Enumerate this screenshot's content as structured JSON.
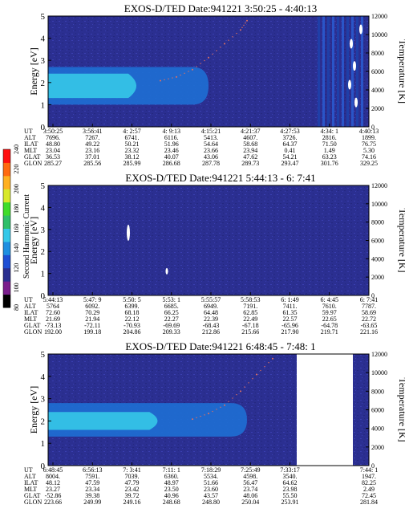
{
  "colors": {
    "background": "#ffffff",
    "axis": "#000000",
    "spectrogram_low": "#2a2f8f",
    "spectrogram_mid": "#1e6fd4",
    "spectrogram_high": "#35c8e8",
    "temperature_dots": "#e07060"
  },
  "colorbar": {
    "label": "Second Harmonic Current",
    "ticks": [
      "80",
      "100",
      "120",
      "140",
      "160",
      "180",
      "200",
      "220",
      "240"
    ],
    "colors": [
      "#000000",
      "#7a1e8c",
      "#2a2f8f",
      "#1e4fd4",
      "#1e8fe0",
      "#35c8e8",
      "#2fbf6a",
      "#3fdc2a",
      "#d8e82a",
      "#ffb020",
      "#ff6a10",
      "#ff1010"
    ]
  },
  "chart_data": [
    {
      "type": "heatmap",
      "title": "EXOS-D/TED   Date:941221  3:50:25 - 4:40:13",
      "ylabel": "Energy [eV]",
      "y2label": "Temperature [K]",
      "ylim": [
        0,
        5
      ],
      "y2lim": [
        0,
        12000
      ],
      "yticks": [
        "0",
        "1",
        "2",
        "3",
        "4",
        "5"
      ],
      "y2ticks": [
        "0",
        "2000",
        "4000",
        "6000",
        "8000",
        "10000",
        "12000"
      ],
      "row_labels": [
        "UT",
        "ALT",
        "ILAT",
        "MLT",
        "GLAT",
        "GLON"
      ],
      "columns": [
        [
          "3:50:25",
          "7696.",
          "48.80",
          "23.04",
          "36.53",
          "285.27"
        ],
        [
          "3:56:41",
          "7267.",
          "49.22",
          "23.16",
          "37.01",
          "285.56"
        ],
        [
          "4: 2:57",
          "6741.",
          "50.21",
          "23.32",
          "38.12",
          "285.99"
        ],
        [
          "4: 9:13",
          "6116.",
          "51.96",
          "23.46",
          "40.07",
          "286.68"
        ],
        [
          "4:15:21",
          "5413.",
          "54.64",
          "23.66",
          "43.06",
          "287.78"
        ],
        [
          "4:21:37",
          "4607.",
          "58.68",
          "23.94",
          "47.62",
          "289.73"
        ],
        [
          "4:27:53",
          "3726.",
          "64.37",
          "0.41",
          "54.21",
          "293.47"
        ],
        [
          "4:34: 1",
          "2816.",
          "71.50",
          "1.49",
          "63.23",
          "301.76"
        ],
        [
          "4:40:13",
          "1899.",
          "76.75",
          "5.30",
          "74.16",
          "329.25"
        ]
      ],
      "band": {
        "energy_low": 1.0,
        "energy_high": 2.7,
        "core_low": 1.3,
        "core_high": 2.4,
        "end_fraction": 0.5
      },
      "temperature_trace": [
        [
          0.35,
          5000
        ],
        [
          0.4,
          5400
        ],
        [
          0.45,
          6200
        ],
        [
          0.5,
          7500
        ],
        [
          0.55,
          9000
        ],
        [
          0.6,
          10500
        ],
        [
          0.62,
          11500
        ]
      ]
    },
    {
      "type": "heatmap",
      "title": "EXOS-D/TED   Date:941221  5:44:13 - 6: 7:41",
      "ylabel": "Energy [eV]",
      "y2label": "Temperature [K]",
      "ylim": [
        0,
        5
      ],
      "y2lim": [
        0,
        12000
      ],
      "yticks": [
        "0",
        "1",
        "2",
        "3",
        "4",
        "5"
      ],
      "y2ticks": [
        "0",
        "2000",
        "4000",
        "6000",
        "8000",
        "10000",
        "12000"
      ],
      "row_labels": [
        "UT",
        "ALT",
        "ILAT",
        "MLT",
        "GLAT",
        "GLON"
      ],
      "columns": [
        [
          "5:44:13",
          "5764",
          "72.60",
          "21.69",
          "-73.13",
          "192.00"
        ],
        [
          "5:47: 9",
          "6092.",
          "70.29",
          "21.94",
          "-72.11",
          "199.18"
        ],
        [
          "5:50: 5",
          "6399.",
          "68.18",
          "22.12",
          "-70.93",
          "204.86"
        ],
        [
          "5:53: 1",
          "6685.",
          "66.25",
          "22.27",
          "-69.69",
          "209.33"
        ],
        [
          "5:55:57",
          "6949.",
          "64.48",
          "22.39",
          "-68.43",
          "212.86"
        ],
        [
          "5:58:53",
          "7191.",
          "62.85",
          "22.49",
          "-67.18",
          "215.66"
        ],
        [
          "6: 1:49",
          "7411.",
          "61.35",
          "22.57",
          "-65.96",
          "217.90"
        ],
        [
          "6: 4:45",
          "7610.",
          "59.97",
          "22.65",
          "-64.78",
          "219.71"
        ],
        [
          "6: 7:41",
          "7787.",
          "58.69",
          "22.72",
          "-63.65",
          "221.16"
        ]
      ]
    },
    {
      "type": "heatmap",
      "title": "EXOS-D/TED   Date:941221  6:48:45 - 7:48: 1",
      "ylabel": "Energy [eV]",
      "y2label": "Temperature [K]",
      "ylim": [
        0,
        5
      ],
      "y2lim": [
        0,
        12000
      ],
      "yticks": [
        "0",
        "1",
        "2",
        "3",
        "4",
        "5"
      ],
      "y2ticks": [
        "0",
        "2000",
        "4000",
        "6000",
        "8000",
        "10000",
        "12000"
      ],
      "row_labels": [
        "UT",
        "ALT",
        "ILAT",
        "MLT",
        "GLAT",
        "GLON"
      ],
      "columns": [
        [
          "6:48:45",
          "8004.",
          "48.12",
          "23.27",
          "-52.86",
          "223.66"
        ],
        [
          "6:56:13",
          "7591.",
          "47.59",
          "23.34",
          "39.38",
          "249.99"
        ],
        [
          "7: 3:41",
          "7039.",
          "47.79",
          "23.42",
          "39.72",
          "249.16"
        ],
        [
          "7:11: 1",
          "6360.",
          "48.97",
          "23.50",
          "40.96",
          "248.68"
        ],
        [
          "7:18:29",
          "5534.",
          "51.66",
          "23.60",
          "43.57",
          "248.80"
        ],
        [
          "7:25:49",
          "4598.",
          "56.47",
          "23.74",
          "48.06",
          "250.04"
        ],
        [
          "7:33:17",
          "3540.",
          "64.62",
          "23.98",
          "55.50",
          "253.91"
        ],
        [
          "",
          "",
          "",
          "",
          "",
          ""
        ],
        [
          "7:44: 1",
          "1947.",
          "82.25",
          "2.49",
          "72.45",
          "281.84"
        ]
      ],
      "band": {
        "energy_low": 1.3,
        "energy_high": 2.8,
        "core_low": 1.6,
        "core_high": 2.4,
        "end_fraction": 0.62
      },
      "temperature_trace": [
        [
          0.45,
          5000
        ],
        [
          0.5,
          5600
        ],
        [
          0.55,
          6500
        ],
        [
          0.6,
          8000
        ],
        [
          0.65,
          9800
        ],
        [
          0.7,
          11500
        ]
      ],
      "data_gap": [
        0.775,
        0.95
      ]
    }
  ]
}
